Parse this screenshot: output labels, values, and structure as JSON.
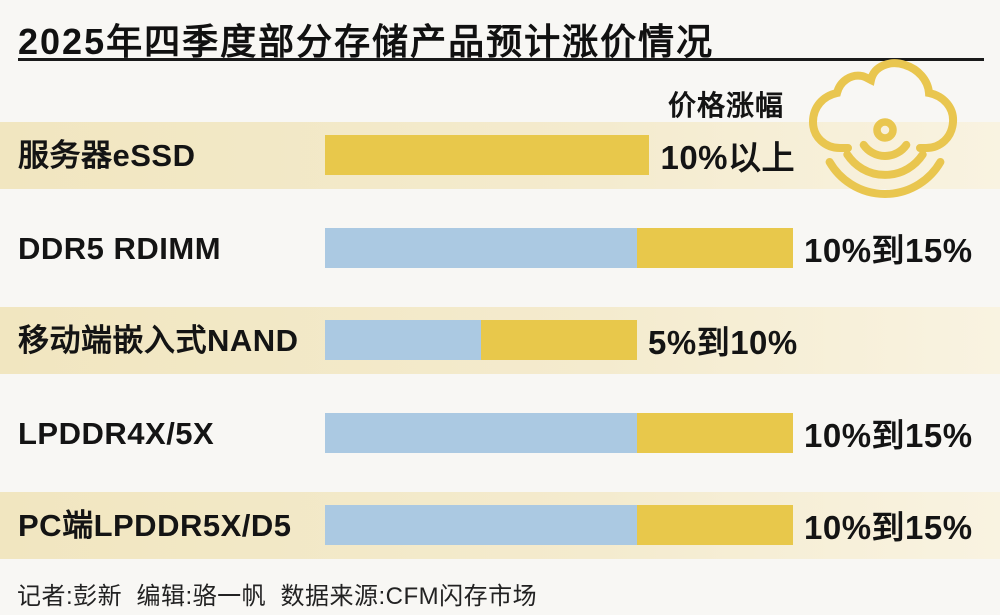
{
  "header": {
    "title": "2025年四季度部分存储产品预计涨价情况",
    "column_label": "价格涨幅"
  },
  "chart_data": {
    "type": "bar",
    "orientation": "horizontal",
    "title": "2025年四季度部分存储产品预计涨价情况",
    "value_axis_label": "价格涨幅",
    "value_unit": "percent",
    "value_axis_range": [
      0,
      15
    ],
    "grid": "off",
    "colors": {
      "blue": "#abc9e2",
      "yellow": "#e8c84b",
      "band": "#f1e6c0",
      "band_fade": "#f9f3e1",
      "text": "#141414"
    },
    "rows": [
      {
        "label": "服务器eSSD",
        "value_label": "10%以上",
        "min_percent": 10,
        "max_percent": null,
        "segments": [
          {
            "color_key": "yellow",
            "from": 0,
            "to": 10.4
          }
        ]
      },
      {
        "label": "DDR5 RDIMM",
        "value_label": "10%到15%",
        "min_percent": 10,
        "max_percent": 15,
        "segments": [
          {
            "color_key": "blue",
            "from": 0,
            "to": 10
          },
          {
            "color_key": "yellow",
            "from": 10,
            "to": 15
          }
        ]
      },
      {
        "label": "移动端嵌入式NAND",
        "value_label": "5%到10%",
        "min_percent": 5,
        "max_percent": 10,
        "segments": [
          {
            "color_key": "blue",
            "from": 0,
            "to": 5
          },
          {
            "color_key": "yellow",
            "from": 5,
            "to": 10
          }
        ]
      },
      {
        "label": "LPDDR4X/5X",
        "value_label": "10%到15%",
        "min_percent": 10,
        "max_percent": 15,
        "segments": [
          {
            "color_key": "blue",
            "from": 0,
            "to": 10
          },
          {
            "color_key": "yellow",
            "from": 10,
            "to": 15
          }
        ]
      },
      {
        "label": "PC端LPDDR5X/D5",
        "value_label": "10%到15%",
        "min_percent": 10,
        "max_percent": 15,
        "segments": [
          {
            "color_key": "blue",
            "from": 0,
            "to": 10
          },
          {
            "color_key": "yellow",
            "from": 10,
            "to": 15
          }
        ]
      }
    ]
  },
  "icon": {
    "name": "cloud-signal-icon",
    "color": "#e9c64f"
  },
  "footer": {
    "credits": "记者:彭新  编辑:骆一帆  数据来源:CFM闪存市场"
  }
}
